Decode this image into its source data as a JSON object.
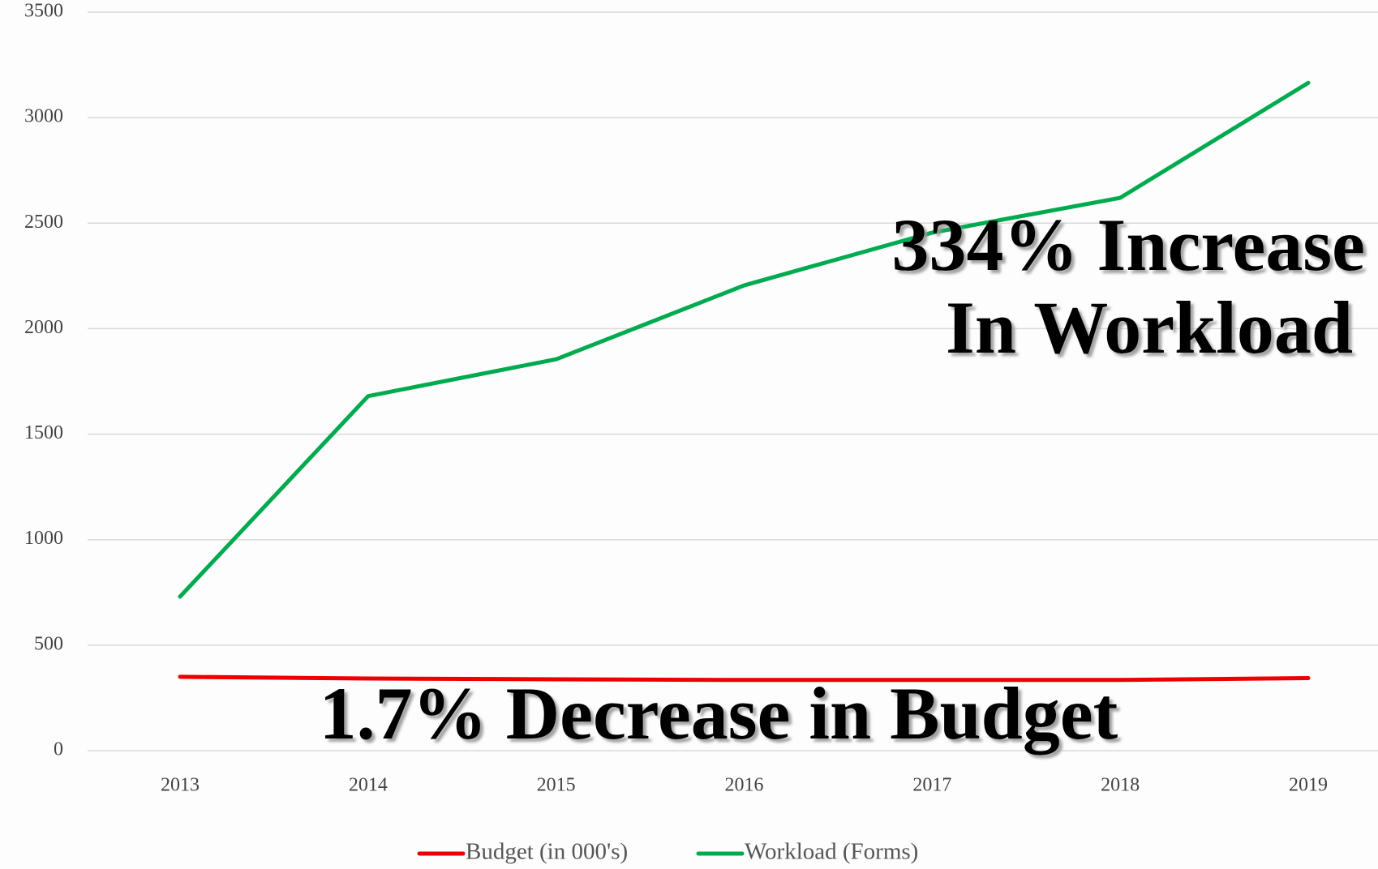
{
  "chart_data": {
    "type": "line",
    "categories": [
      "2013",
      "2014",
      "2015",
      "2016",
      "2017",
      "2018",
      "2019"
    ],
    "series": [
      {
        "name": "Budget (in 000's)",
        "color": "#ee0000",
        "values": [
          350,
          342,
          338,
          335,
          335,
          335,
          344
        ]
      },
      {
        "name": "Workload (Forms)",
        "color": "#00aa4f",
        "values": [
          730,
          1680,
          1855,
          2205,
          2455,
          2620,
          3165
        ]
      }
    ],
    "ylim": [
      0,
      3500
    ],
    "yticks": [
      0,
      500,
      1000,
      1500,
      2000,
      2500,
      3000,
      3500
    ],
    "grid": true,
    "legend": "bottom",
    "annotations": [
      "334% Increase",
      "In Workload",
      "1.7% Decrease in Budget"
    ]
  }
}
